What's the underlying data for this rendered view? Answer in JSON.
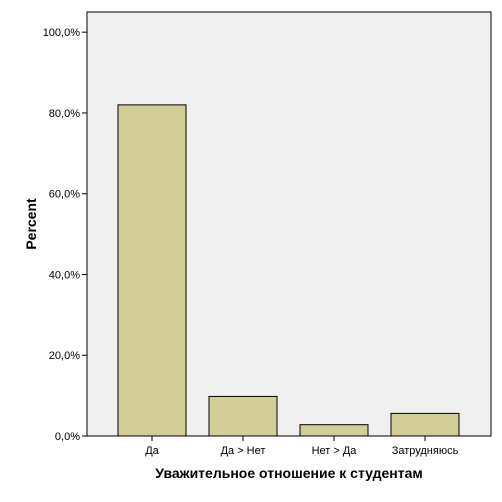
{
  "chart_data": {
    "type": "bar",
    "categories": [
      "Да",
      "Да > Нет",
      "Нет > Да",
      "Затрудняюсь"
    ],
    "values": [
      82.0,
      9.8,
      2.8,
      5.6
    ],
    "xlabel": "Уважительное отношение к студентам",
    "ylabel": "Percent",
    "ylim": [
      0,
      105
    ],
    "yticks": [
      0,
      20,
      40,
      60,
      80,
      100
    ],
    "ytick_labels": [
      "0,0%",
      "20,0%",
      "40,0%",
      "60,0%",
      "80,0%",
      "100,0%"
    ],
    "grid": false,
    "legend": "none",
    "colors": {
      "plot_background": "#f0f0f0",
      "bar_fill": "#d3ce97",
      "bar_stroke": "#000000",
      "axis": "#000000"
    }
  }
}
